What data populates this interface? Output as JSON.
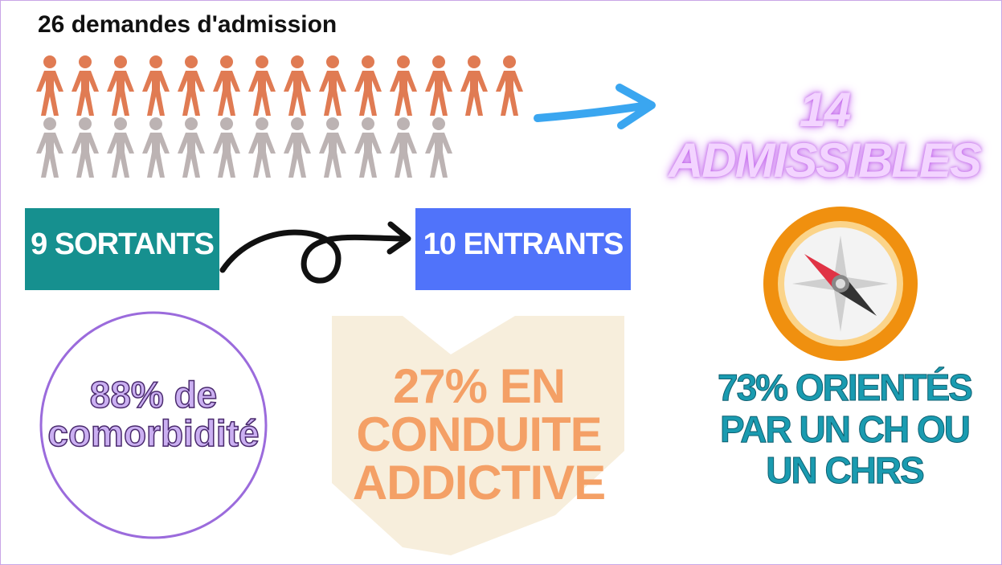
{
  "requests": {
    "title": "26 demandes d'admission",
    "result": "14 ADMISSIBLES"
  },
  "flows": {
    "out": "9 SORTANTS",
    "in": "10 ENTRANTS"
  },
  "stats": {
    "comorbidity": {
      "lines": [
        "88% de",
        "comorbidité"
      ]
    },
    "addiction": {
      "lines": [
        "27% EN",
        "CONDUITE",
        "ADDICTIVE"
      ]
    },
    "orientation": {
      "lines": [
        "73% ORIENTÉS",
        "PAR UN CH OU",
        "UN CHRS"
      ]
    }
  }
}
